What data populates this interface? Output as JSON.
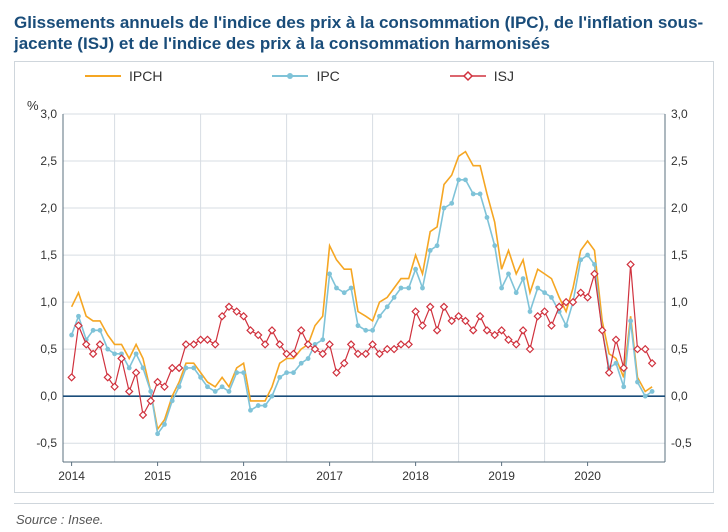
{
  "title": "Glissements annuels de l'indice des prix à la consommation (IPC), de l'inflation sous-jacente (ISJ) et de l'indice des prix à la consommation harmonisés",
  "unit_label": "%",
  "source": "Source : Insee.",
  "chart": {
    "type": "line",
    "background_color": "#ffffff",
    "card_border": "#cfd6dc",
    "grid_color": "#d7dde3",
    "axis_color": "#5b707f",
    "zero_line_color": "#1a4d7a",
    "tick_font_size": 12,
    "tick_color": "#333333",
    "title_color": "#1a4d7a",
    "ylim": [
      -0.7,
      3.0
    ],
    "yticks": [
      -0.5,
      0.0,
      0.5,
      1.0,
      1.5,
      2.0,
      2.5,
      3.0
    ],
    "xlim": [
      2013.9,
      2020.9
    ],
    "xticks": [
      2014,
      2015,
      2016,
      2017,
      2018,
      2019,
      2020
    ],
    "xtick_labels": [
      "2014",
      "2015",
      "2016",
      "2017",
      "2018",
      "2019",
      "2020"
    ],
    "year_separators": [
      2014.5,
      2015.5,
      2016.5,
      2017.5,
      2018.5,
      2019.5
    ],
    "series": {
      "ipch": {
        "label": "IPCH",
        "color": "#f5a623",
        "marker": "none",
        "line_width": 1.6,
        "data": [
          [
            2014.0,
            0.95
          ],
          [
            2014.08,
            1.1
          ],
          [
            2014.17,
            0.85
          ],
          [
            2014.25,
            0.8
          ],
          [
            2014.33,
            0.8
          ],
          [
            2014.42,
            0.65
          ],
          [
            2014.5,
            0.55
          ],
          [
            2014.58,
            0.55
          ],
          [
            2014.67,
            0.4
          ],
          [
            2014.75,
            0.55
          ],
          [
            2014.83,
            0.4
          ],
          [
            2014.92,
            0.05
          ],
          [
            2015.0,
            -0.35
          ],
          [
            2015.08,
            -0.25
          ],
          [
            2015.17,
            0.0
          ],
          [
            2015.25,
            0.15
          ],
          [
            2015.33,
            0.35
          ],
          [
            2015.42,
            0.35
          ],
          [
            2015.5,
            0.25
          ],
          [
            2015.58,
            0.15
          ],
          [
            2015.67,
            0.1
          ],
          [
            2015.75,
            0.2
          ],
          [
            2015.83,
            0.1
          ],
          [
            2015.92,
            0.3
          ],
          [
            2016.0,
            0.35
          ],
          [
            2016.08,
            -0.05
          ],
          [
            2016.17,
            -0.05
          ],
          [
            2016.25,
            -0.05
          ],
          [
            2016.33,
            0.1
          ],
          [
            2016.42,
            0.35
          ],
          [
            2016.5,
            0.4
          ],
          [
            2016.58,
            0.4
          ],
          [
            2016.67,
            0.5
          ],
          [
            2016.75,
            0.55
          ],
          [
            2016.83,
            0.75
          ],
          [
            2016.92,
            0.85
          ],
          [
            2017.0,
            1.6
          ],
          [
            2017.08,
            1.45
          ],
          [
            2017.17,
            1.35
          ],
          [
            2017.25,
            1.35
          ],
          [
            2017.33,
            0.9
          ],
          [
            2017.42,
            0.85
          ],
          [
            2017.5,
            0.8
          ],
          [
            2017.58,
            1.0
          ],
          [
            2017.67,
            1.05
          ],
          [
            2017.75,
            1.15
          ],
          [
            2017.83,
            1.25
          ],
          [
            2017.92,
            1.25
          ],
          [
            2018.0,
            1.5
          ],
          [
            2018.08,
            1.3
          ],
          [
            2018.17,
            1.75
          ],
          [
            2018.25,
            1.8
          ],
          [
            2018.33,
            2.25
          ],
          [
            2018.42,
            2.35
          ],
          [
            2018.5,
            2.55
          ],
          [
            2018.58,
            2.6
          ],
          [
            2018.67,
            2.45
          ],
          [
            2018.75,
            2.45
          ],
          [
            2018.83,
            2.15
          ],
          [
            2018.92,
            1.85
          ],
          [
            2019.0,
            1.35
          ],
          [
            2019.08,
            1.55
          ],
          [
            2019.17,
            1.3
          ],
          [
            2019.25,
            1.45
          ],
          [
            2019.33,
            1.1
          ],
          [
            2019.42,
            1.35
          ],
          [
            2019.5,
            1.3
          ],
          [
            2019.58,
            1.25
          ],
          [
            2019.67,
            1.05
          ],
          [
            2019.75,
            0.9
          ],
          [
            2019.83,
            1.15
          ],
          [
            2019.92,
            1.55
          ],
          [
            2020.0,
            1.65
          ],
          [
            2020.08,
            1.55
          ],
          [
            2020.17,
            0.8
          ],
          [
            2020.25,
            0.45
          ],
          [
            2020.33,
            0.4
          ],
          [
            2020.42,
            0.2
          ],
          [
            2020.5,
            0.85
          ],
          [
            2020.58,
            0.2
          ],
          [
            2020.67,
            0.05
          ],
          [
            2020.75,
            0.1
          ]
        ]
      },
      "ipc": {
        "label": "IPC",
        "color": "#7fc3d8",
        "marker": "circle",
        "marker_size": 2.4,
        "line_width": 1.6,
        "data": [
          [
            2014.0,
            0.65
          ],
          [
            2014.08,
            0.85
          ],
          [
            2014.17,
            0.6
          ],
          [
            2014.25,
            0.7
          ],
          [
            2014.33,
            0.7
          ],
          [
            2014.42,
            0.5
          ],
          [
            2014.5,
            0.45
          ],
          [
            2014.58,
            0.45
          ],
          [
            2014.67,
            0.3
          ],
          [
            2014.75,
            0.45
          ],
          [
            2014.83,
            0.3
          ],
          [
            2014.92,
            0.05
          ],
          [
            2015.0,
            -0.4
          ],
          [
            2015.08,
            -0.3
          ],
          [
            2015.17,
            -0.05
          ],
          [
            2015.25,
            0.1
          ],
          [
            2015.33,
            0.3
          ],
          [
            2015.42,
            0.3
          ],
          [
            2015.5,
            0.2
          ],
          [
            2015.58,
            0.1
          ],
          [
            2015.67,
            0.05
          ],
          [
            2015.75,
            0.1
          ],
          [
            2015.83,
            0.05
          ],
          [
            2015.92,
            0.25
          ],
          [
            2016.0,
            0.25
          ],
          [
            2016.08,
            -0.15
          ],
          [
            2016.17,
            -0.1
          ],
          [
            2016.25,
            -0.1
          ],
          [
            2016.33,
            0.0
          ],
          [
            2016.42,
            0.2
          ],
          [
            2016.5,
            0.25
          ],
          [
            2016.58,
            0.25
          ],
          [
            2016.67,
            0.35
          ],
          [
            2016.75,
            0.4
          ],
          [
            2016.83,
            0.55
          ],
          [
            2016.92,
            0.6
          ],
          [
            2017.0,
            1.3
          ],
          [
            2017.08,
            1.15
          ],
          [
            2017.17,
            1.1
          ],
          [
            2017.25,
            1.15
          ],
          [
            2017.33,
            0.75
          ],
          [
            2017.42,
            0.7
          ],
          [
            2017.5,
            0.7
          ],
          [
            2017.58,
            0.85
          ],
          [
            2017.67,
            0.95
          ],
          [
            2017.75,
            1.05
          ],
          [
            2017.83,
            1.15
          ],
          [
            2017.92,
            1.15
          ],
          [
            2018.0,
            1.35
          ],
          [
            2018.08,
            1.15
          ],
          [
            2018.17,
            1.55
          ],
          [
            2018.25,
            1.6
          ],
          [
            2018.33,
            2.0
          ],
          [
            2018.42,
            2.05
          ],
          [
            2018.5,
            2.3
          ],
          [
            2018.58,
            2.3
          ],
          [
            2018.67,
            2.15
          ],
          [
            2018.75,
            2.15
          ],
          [
            2018.83,
            1.9
          ],
          [
            2018.92,
            1.6
          ],
          [
            2019.0,
            1.15
          ],
          [
            2019.08,
            1.3
          ],
          [
            2019.17,
            1.1
          ],
          [
            2019.25,
            1.25
          ],
          [
            2019.33,
            0.9
          ],
          [
            2019.42,
            1.15
          ],
          [
            2019.5,
            1.1
          ],
          [
            2019.58,
            1.05
          ],
          [
            2019.67,
            0.9
          ],
          [
            2019.75,
            0.75
          ],
          [
            2019.83,
            1.0
          ],
          [
            2019.92,
            1.45
          ],
          [
            2020.0,
            1.5
          ],
          [
            2020.08,
            1.4
          ],
          [
            2020.17,
            0.7
          ],
          [
            2020.25,
            0.3
          ],
          [
            2020.33,
            0.35
          ],
          [
            2020.42,
            0.1
          ],
          [
            2020.5,
            0.8
          ],
          [
            2020.58,
            0.15
          ],
          [
            2020.67,
            0.0
          ],
          [
            2020.75,
            0.05
          ]
        ]
      },
      "isj": {
        "label": "ISJ",
        "color": "#d0323e",
        "marker": "diamond_open",
        "marker_size": 3.4,
        "line_width": 1.2,
        "data": [
          [
            2014.0,
            0.2
          ],
          [
            2014.08,
            0.75
          ],
          [
            2014.17,
            0.55
          ],
          [
            2014.25,
            0.45
          ],
          [
            2014.33,
            0.55
          ],
          [
            2014.42,
            0.2
          ],
          [
            2014.5,
            0.1
          ],
          [
            2014.58,
            0.4
          ],
          [
            2014.67,
            0.05
          ],
          [
            2014.75,
            0.25
          ],
          [
            2014.83,
            -0.2
          ],
          [
            2014.92,
            -0.05
          ],
          [
            2015.0,
            0.15
          ],
          [
            2015.08,
            0.1
          ],
          [
            2015.17,
            0.3
          ],
          [
            2015.25,
            0.3
          ],
          [
            2015.33,
            0.55
          ],
          [
            2015.42,
            0.55
          ],
          [
            2015.5,
            0.6
          ],
          [
            2015.58,
            0.6
          ],
          [
            2015.67,
            0.55
          ],
          [
            2015.75,
            0.85
          ],
          [
            2015.83,
            0.95
          ],
          [
            2015.92,
            0.9
          ],
          [
            2016.0,
            0.85
          ],
          [
            2016.08,
            0.7
          ],
          [
            2016.17,
            0.65
          ],
          [
            2016.25,
            0.55
          ],
          [
            2016.33,
            0.7
          ],
          [
            2016.42,
            0.55
          ],
          [
            2016.5,
            0.45
          ],
          [
            2016.58,
            0.45
          ],
          [
            2016.67,
            0.7
          ],
          [
            2016.75,
            0.55
          ],
          [
            2016.83,
            0.5
          ],
          [
            2016.92,
            0.45
          ],
          [
            2017.0,
            0.55
          ],
          [
            2017.08,
            0.25
          ],
          [
            2017.17,
            0.35
          ],
          [
            2017.25,
            0.55
          ],
          [
            2017.33,
            0.45
          ],
          [
            2017.42,
            0.45
          ],
          [
            2017.5,
            0.55
          ],
          [
            2017.58,
            0.45
          ],
          [
            2017.67,
            0.5
          ],
          [
            2017.75,
            0.5
          ],
          [
            2017.83,
            0.55
          ],
          [
            2017.92,
            0.55
          ],
          [
            2018.0,
            0.9
          ],
          [
            2018.08,
            0.75
          ],
          [
            2018.17,
            0.95
          ],
          [
            2018.25,
            0.7
          ],
          [
            2018.33,
            0.95
          ],
          [
            2018.42,
            0.8
          ],
          [
            2018.5,
            0.85
          ],
          [
            2018.58,
            0.8
          ],
          [
            2018.67,
            0.7
          ],
          [
            2018.75,
            0.85
          ],
          [
            2018.83,
            0.7
          ],
          [
            2018.92,
            0.65
          ],
          [
            2019.0,
            0.7
          ],
          [
            2019.08,
            0.6
          ],
          [
            2019.17,
            0.55
          ],
          [
            2019.25,
            0.7
          ],
          [
            2019.33,
            0.5
          ],
          [
            2019.42,
            0.85
          ],
          [
            2019.5,
            0.9
          ],
          [
            2019.58,
            0.75
          ],
          [
            2019.67,
            0.95
          ],
          [
            2019.75,
            1.0
          ],
          [
            2019.83,
            1.0
          ],
          [
            2019.92,
            1.1
          ],
          [
            2020.0,
            1.05
          ],
          [
            2020.08,
            1.3
          ],
          [
            2020.17,
            0.7
          ],
          [
            2020.25,
            0.25
          ],
          [
            2020.33,
            0.6
          ],
          [
            2020.42,
            0.3
          ],
          [
            2020.5,
            1.4
          ],
          [
            2020.58,
            0.5
          ],
          [
            2020.67,
            0.5
          ],
          [
            2020.75,
            0.35
          ]
        ]
      }
    }
  }
}
